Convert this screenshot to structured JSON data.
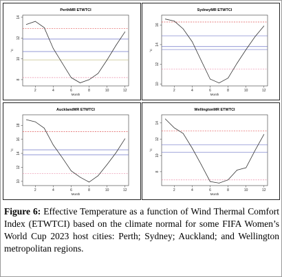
{
  "caption": {
    "label": "Figure 6:",
    "text": "Effective Temperature as a function of Wind Thermal Comfort Index (ETWTCI) based on the climate normal for some FIFA Women’s World Cup 2023 host cities: Perth; Sydney; Auckland; and Wellington metropolitan regions."
  },
  "colors": {
    "line": "#333333",
    "ref_red": "#e05555",
    "ref_blue": "#6f76c8",
    "ref_green": "#c6c18a",
    "ref_pink": "#e98aa6"
  },
  "chart_data": [
    {
      "type": "line",
      "title": "PerthMR ETWTCI",
      "xlabel": "Month",
      "ylabel": "°C",
      "x": [
        1,
        2,
        3,
        4,
        5,
        6,
        7,
        8,
        9,
        10,
        11,
        12
      ],
      "values": [
        13.3,
        13.6,
        13.0,
        11.0,
        9.6,
        8.2,
        7.7,
        8.0,
        8.6,
        9.9,
        11.3,
        12.6
      ],
      "xticks": [
        "2",
        "4",
        "6",
        "8",
        "10",
        "12"
      ],
      "yticks": [
        "14",
        "12",
        "10",
        "8"
      ],
      "ylim": [
        7.4,
        14.2
      ],
      "reference_lines": [
        {
          "y": 12.9,
          "color": "ref_red"
        },
        {
          "y": 11.9,
          "color": "ref_blue"
        },
        {
          "y": 10.7,
          "color": "ref_blue"
        },
        {
          "y": 9.9,
          "color": "ref_green"
        },
        {
          "y": 8.2,
          "color": "ref_pink"
        }
      ]
    },
    {
      "type": "line",
      "title": "SydneyMR ETWTCI",
      "xlabel": "Month",
      "ylabel": "°C",
      "x": [
        1,
        2,
        3,
        4,
        5,
        6,
        7,
        8,
        9,
        10,
        11,
        12
      ],
      "values": [
        16.6,
        16.4,
        15.6,
        14.3,
        12.4,
        10.5,
        10.1,
        10.6,
        12.1,
        13.5,
        14.8,
        15.9
      ],
      "xticks": [
        "2",
        "4",
        "6",
        "8",
        "10",
        "12"
      ],
      "yticks": [
        "16",
        "14",
        "12",
        "10"
      ],
      "ylim": [
        9.8,
        17.0
      ],
      "reference_lines": [
        {
          "y": 16.3,
          "color": "ref_red"
        },
        {
          "y": 14.9,
          "color": "ref_blue"
        },
        {
          "y": 13.8,
          "color": "ref_blue"
        },
        {
          "y": 13.5,
          "color": "ref_blue"
        },
        {
          "y": 11.5,
          "color": "ref_pink"
        }
      ]
    },
    {
      "type": "line",
      "title": "AucklandMR ETWTCI",
      "xlabel": "Month",
      "ylabel": "°C",
      "x": [
        1,
        2,
        3,
        4,
        5,
        6,
        7,
        8,
        9,
        10,
        11,
        12
      ],
      "values": [
        18.8,
        18.5,
        17.6,
        15.2,
        13.4,
        11.5,
        10.6,
        9.9,
        10.8,
        12.4,
        14.1,
        16.1
      ],
      "xticks": [
        "2",
        "4",
        "6",
        "8",
        "10",
        "12"
      ],
      "yticks": [
        "18",
        "16",
        "14",
        "12",
        "10"
      ],
      "ylim": [
        9.4,
        19.5
      ],
      "reference_lines": [
        {
          "y": 17.1,
          "color": "ref_red"
        },
        {
          "y": 14.5,
          "color": "ref_blue"
        },
        {
          "y": 13.8,
          "color": "ref_blue"
        },
        {
          "y": 11.1,
          "color": "ref_pink"
        }
      ]
    },
    {
      "type": "line",
      "title": "WellingtonMR ETWTCI",
      "xlabel": "Month",
      "ylabel": "°C",
      "x": [
        1,
        2,
        3,
        4,
        5,
        6,
        7,
        8,
        9,
        10,
        11,
        12
      ],
      "values": [
        14.5,
        13.4,
        12.7,
        10.9,
        8.9,
        6.8,
        6.6,
        7.0,
        8.2,
        8.5,
        10.6,
        12.6
      ],
      "xticks": [
        "2",
        "4",
        "6",
        "8",
        "10",
        "12"
      ],
      "yticks": [
        "14",
        "12",
        "10",
        "8"
      ],
      "ylim": [
        6.3,
        15.0
      ],
      "reference_lines": [
        {
          "y": 13.0,
          "color": "ref_red"
        },
        {
          "y": 11.3,
          "color": "ref_blue"
        },
        {
          "y": 10.4,
          "color": "ref_blue"
        },
        {
          "y": 7.0,
          "color": "ref_pink"
        }
      ]
    }
  ]
}
